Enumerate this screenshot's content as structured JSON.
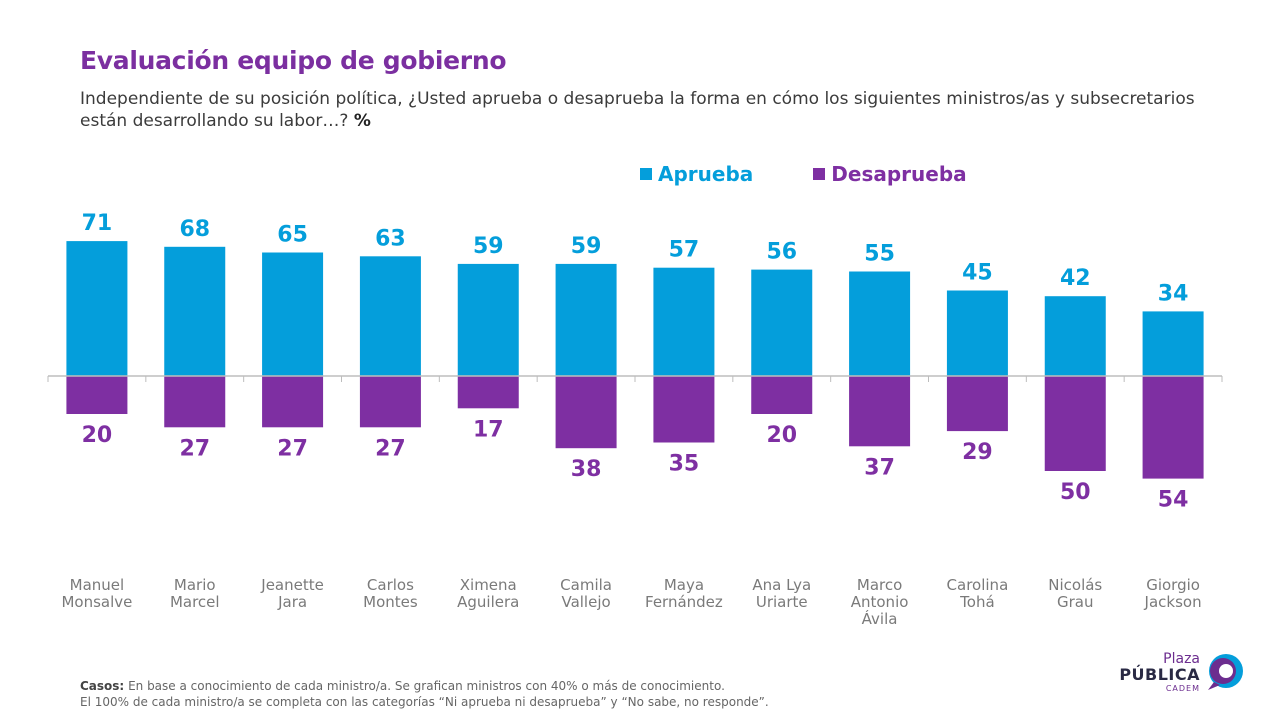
{
  "title": "Evaluación equipo de gobierno",
  "subtitle": "Independiente de su posición política, ¿Usted aprueba o desaprueba la forma en cómo los siguientes ministros/as y subsecretarios están desarrollando su labor…?",
  "subtitle_suffix": "%",
  "colors": {
    "approve": "#049edb",
    "disapprove": "#7e2fa2",
    "title": "#7b2fa0",
    "axis": "#bdbdbd",
    "category_text": "#7a7a7a"
  },
  "chart_data": {
    "type": "bar",
    "categories": [
      [
        "Manuel",
        "Monsalve"
      ],
      [
        "Mario",
        "Marcel"
      ],
      [
        "Jeanette",
        "Jara"
      ],
      [
        "Carlos",
        "Montes"
      ],
      [
        "Ximena",
        "Aguilera"
      ],
      [
        "Camila",
        "Vallejo"
      ],
      [
        "Maya",
        "Fernández"
      ],
      [
        "Ana Lya",
        "Uriarte"
      ],
      [
        "Marco",
        "Antonio",
        "Ávila"
      ],
      [
        "Carolina",
        "Tohá"
      ],
      [
        "Nicolás",
        "Grau"
      ],
      [
        "Giorgio",
        "Jackson"
      ]
    ],
    "series": [
      {
        "name": "Aprueba",
        "color": "#049edb",
        "direction": "up",
        "values": [
          71,
          68,
          65,
          63,
          59,
          59,
          57,
          56,
          55,
          45,
          42,
          34
        ]
      },
      {
        "name": "Desaprueba",
        "color": "#7e2fa2",
        "direction": "down",
        "values": [
          20,
          27,
          27,
          27,
          17,
          38,
          35,
          20,
          37,
          29,
          50,
          54
        ]
      }
    ],
    "ylim": [
      -54,
      71
    ],
    "legend_position": "top-right",
    "grid": false
  },
  "footer": {
    "label": "Casos:",
    "line1": "En base a conocimiento de cada ministro/a. Se grafican ministros con 40% o más de conocimiento.",
    "line2": "El 100% de cada ministro/a se completa con las categorías “Ni aprueba ni desaprueba” y “No sabe, no responde”."
  },
  "logo": {
    "line1": "Plaza",
    "line2": "PÚBLICA",
    "line3": "CADEM"
  }
}
